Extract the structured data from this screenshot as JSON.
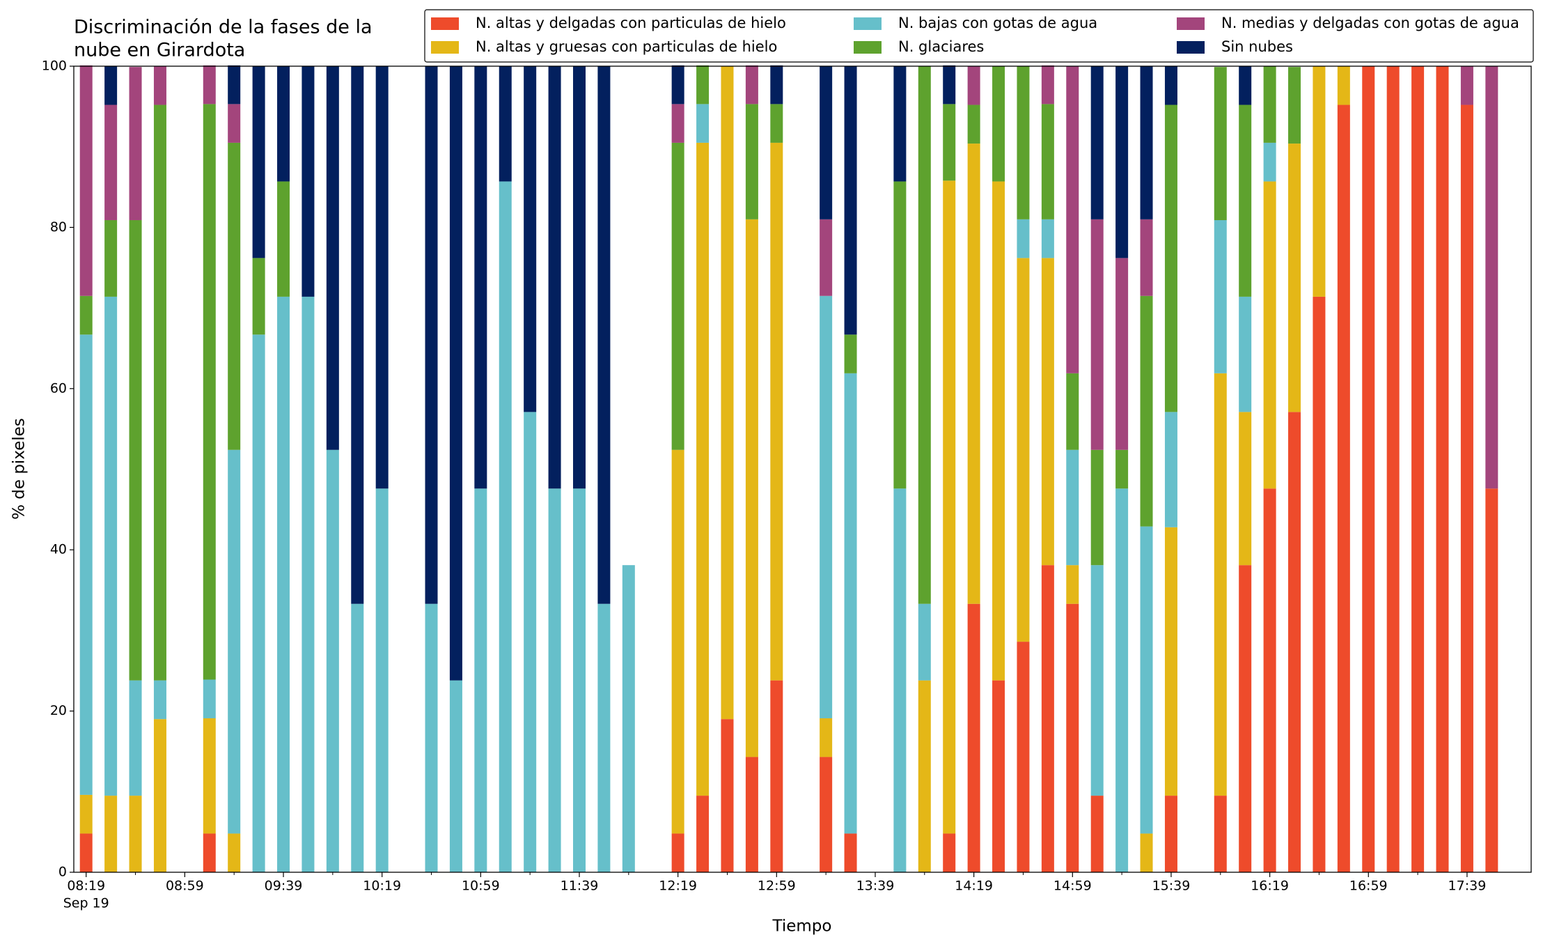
{
  "chart_data": {
    "type": "stacked_bar",
    "title": [
      "Discriminación de la fases de la",
      "nube en Girardota"
    ],
    "xlabel": "Tiempo",
    "ylabel": "% de pixeles",
    "x_date_label": "Sep 19",
    "categories": [
      "08:19",
      "08:29",
      "08:39",
      "08:49",
      "08:59",
      "09:09",
      "09:19",
      "09:29",
      "09:39",
      "09:49",
      "09:59",
      "10:09",
      "10:19",
      "10:29",
      "10:39",
      "10:49",
      "10:59",
      "11:09",
      "11:19",
      "11:29",
      "11:39",
      "11:49",
      "11:59",
      "12:09",
      "12:19",
      "12:29",
      "12:39",
      "12:49",
      "12:59",
      "13:09",
      "13:19",
      "13:29",
      "13:39",
      "13:49",
      "13:59",
      "14:09",
      "14:19",
      "14:29",
      "14:39",
      "14:49",
      "14:59",
      "15:09",
      "15:19",
      "15:29",
      "15:39",
      "15:49",
      "15:59",
      "16:09",
      "16:19",
      "16:29",
      "16:39",
      "16:49",
      "16:59",
      "17:09",
      "17:19",
      "17:29",
      "17:39",
      "17:49"
    ],
    "xticks": [
      "08:19",
      "08:59",
      "09:39",
      "10:19",
      "10:59",
      "11:39",
      "12:19",
      "12:59",
      "13:39",
      "14:19",
      "14:59",
      "15:39",
      "16:19",
      "16:59",
      "17:39"
    ],
    "xlim": [
      -0.5,
      58.6
    ],
    "ylim": [
      0,
      100
    ],
    "yticks": [
      0,
      20,
      40,
      60,
      80,
      100
    ],
    "grid": false,
    "legend": "upper right",
    "series": [
      {
        "name": "N. altas y delgadas con particulas de hielo",
        "color": "#ee4b2b",
        "values": [
          4.8,
          0,
          0,
          0,
          null,
          4.8,
          0,
          0,
          0,
          0,
          0,
          0,
          0,
          null,
          0,
          0,
          0,
          0,
          0,
          0,
          0,
          0,
          0,
          null,
          4.8,
          9.5,
          19.0,
          14.3,
          23.8,
          null,
          14.3,
          4.8,
          null,
          0,
          0,
          4.8,
          33.3,
          23.8,
          28.6,
          38.1,
          33.3,
          9.5,
          0,
          0,
          9.5,
          null,
          9.5,
          38.1,
          47.6,
          57.1,
          71.4,
          95.2,
          100,
          100,
          100,
          100,
          95.2,
          47.6
        ]
      },
      {
        "name": "N. altas y gruesas con particulas de hielo",
        "color": "#e4b717",
        "values": [
          4.8,
          9.5,
          9.5,
          19.0,
          null,
          14.3,
          4.8,
          0,
          0,
          0,
          0,
          0,
          0,
          null,
          0,
          0,
          0,
          0,
          0,
          0,
          0,
          0,
          0,
          null,
          47.6,
          81.0,
          81.0,
          66.7,
          66.7,
          null,
          4.8,
          0,
          null,
          0,
          23.8,
          81.0,
          57.1,
          61.9,
          47.6,
          38.1,
          4.8,
          0,
          0,
          4.8,
          33.3,
          null,
          52.4,
          19.0,
          38.1,
          33.3,
          28.6,
          4.8,
          0,
          0,
          0,
          0,
          0,
          0
        ]
      },
      {
        "name": "N. bajas con gotas de agua",
        "color": "#66bfca",
        "values": [
          57.1,
          61.9,
          14.3,
          4.8,
          null,
          4.8,
          47.6,
          66.7,
          71.4,
          71.4,
          52.4,
          33.3,
          47.6,
          null,
          33.3,
          23.8,
          47.6,
          85.7,
          57.1,
          47.6,
          47.6,
          33.3,
          38.1,
          null,
          0,
          4.8,
          0,
          0,
          0,
          null,
          52.4,
          57.1,
          null,
          47.6,
          9.5,
          0,
          0,
          0,
          4.8,
          4.8,
          14.3,
          28.6,
          47.6,
          38.1,
          14.3,
          null,
          19.0,
          14.3,
          4.8,
          0,
          0,
          0,
          0,
          0,
          0,
          0,
          0,
          0
        ]
      },
      {
        "name": "N. glaciares",
        "color": "#5ea22e",
        "values": [
          4.8,
          9.5,
          57.1,
          71.4,
          null,
          71.4,
          38.1,
          9.5,
          14.3,
          0,
          0,
          0,
          0,
          null,
          0,
          0,
          0,
          0,
          0,
          0,
          0,
          0,
          0,
          null,
          38.1,
          4.8,
          0,
          14.3,
          4.8,
          null,
          0,
          4.8,
          null,
          38.1,
          66.7,
          9.5,
          4.8,
          14.3,
          19.0,
          14.3,
          9.5,
          14.3,
          4.8,
          28.6,
          38.1,
          null,
          19.0,
          23.8,
          9.5,
          9.5,
          0,
          0,
          0,
          0,
          0,
          0,
          0,
          0
        ]
      },
      {
        "name": "N. medias y delgadas con gotas de agua",
        "color": "#a3457c",
        "values": [
          28.6,
          14.3,
          19.0,
          4.8,
          null,
          4.8,
          4.8,
          0,
          0,
          0,
          0,
          0,
          0,
          null,
          0,
          0,
          0,
          0,
          0,
          0,
          0,
          0,
          0,
          null,
          4.8,
          0,
          0,
          4.8,
          0,
          null,
          9.5,
          0,
          null,
          0,
          0,
          0,
          4.8,
          0,
          0,
          4.8,
          38.1,
          28.6,
          23.8,
          9.5,
          0,
          null,
          0,
          0,
          0,
          0,
          0,
          0,
          0,
          0,
          0,
          0,
          4.8,
          52.4
        ]
      },
      {
        "name": "Sin nubes",
        "color": "#03205e",
        "values": [
          0,
          4.8,
          0,
          0,
          null,
          0,
          4.8,
          23.8,
          14.3,
          28.6,
          47.6,
          66.7,
          52.4,
          null,
          66.7,
          76.2,
          52.4,
          14.3,
          42.9,
          52.4,
          52.4,
          66.7,
          0,
          null,
          4.8,
          0,
          0,
          0,
          4.8,
          null,
          19.0,
          33.3,
          null,
          14.3,
          0,
          4.8,
          0,
          0,
          0,
          0,
          0,
          19.0,
          23.8,
          19.0,
          4.8,
          null,
          0,
          4.8,
          0,
          0,
          0,
          0,
          0,
          0,
          0,
          0,
          0,
          0
        ]
      }
    ]
  }
}
